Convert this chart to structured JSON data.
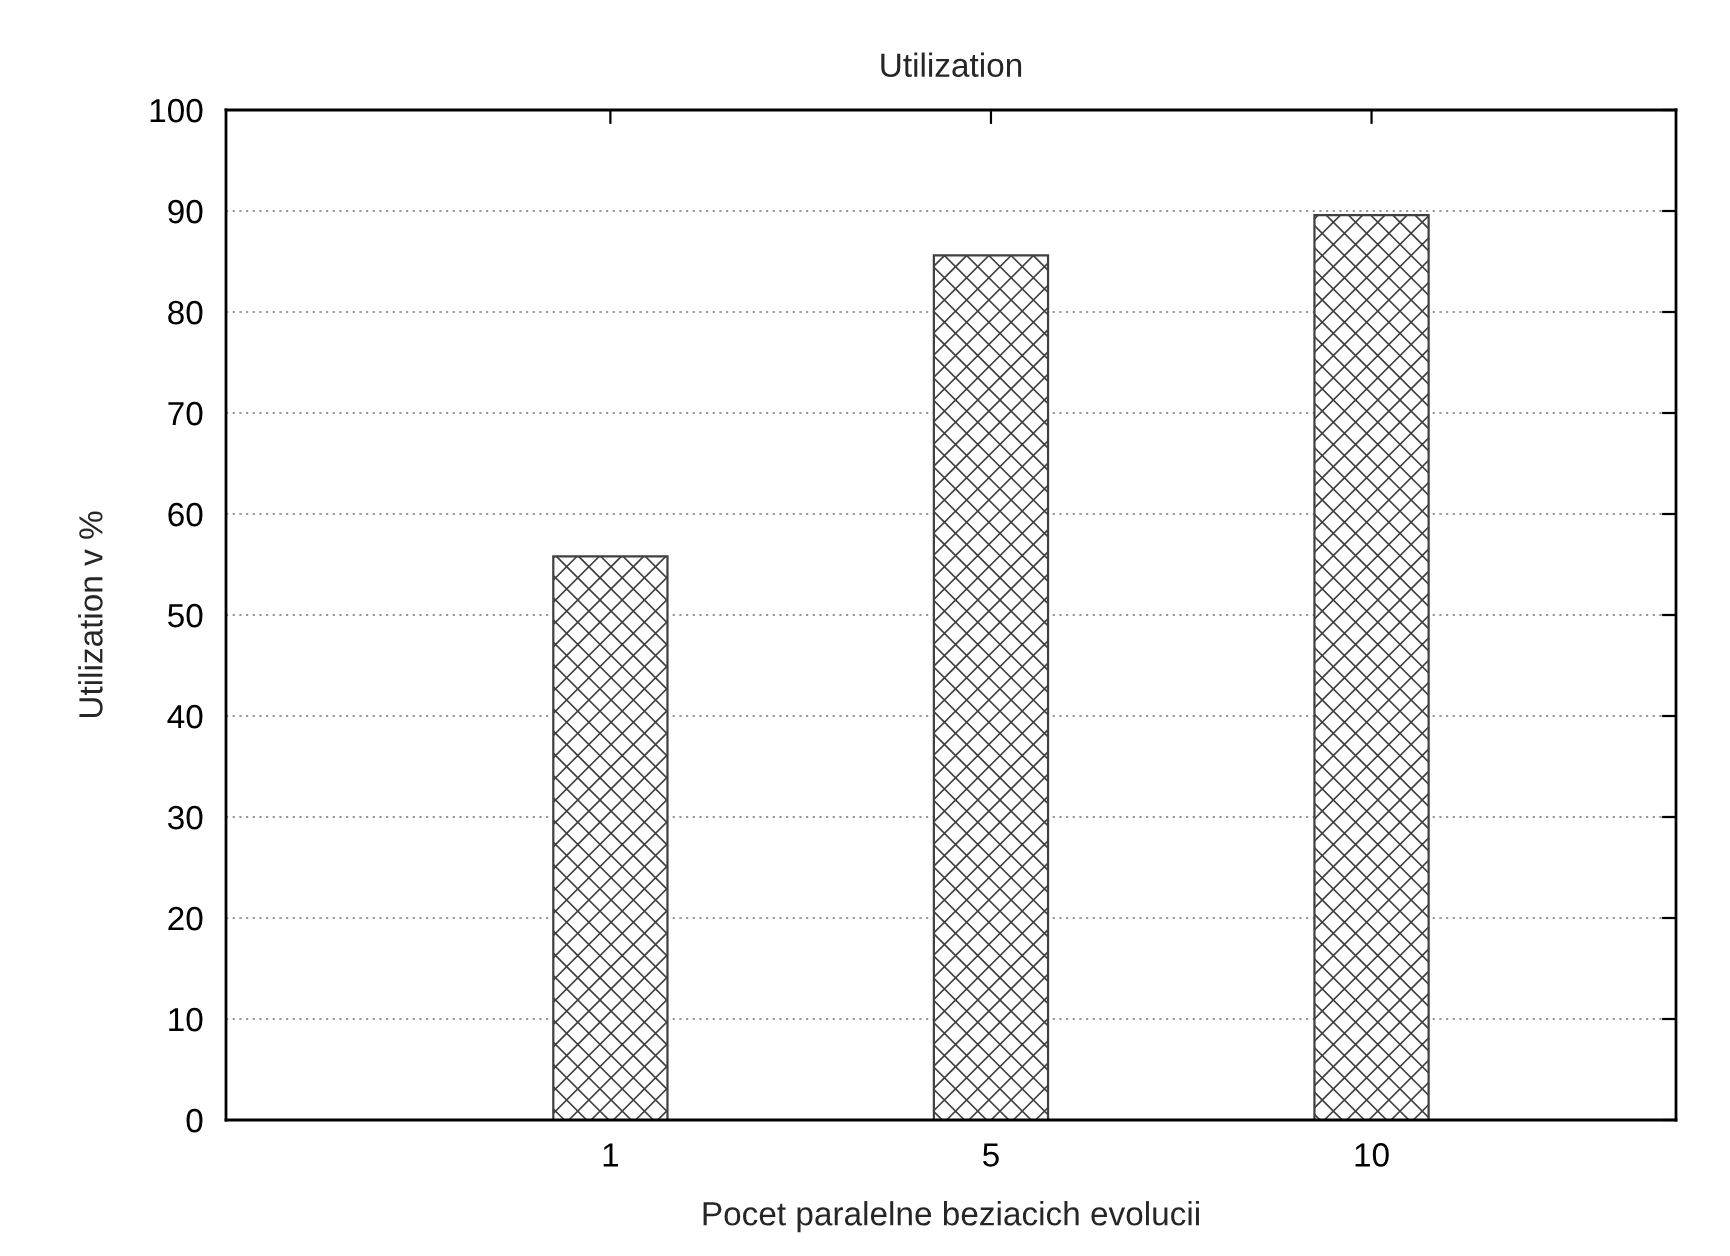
{
  "chart_data": {
    "type": "bar",
    "title": "Utilization",
    "xlabel": "Pocet paralelne beziacich evolucii",
    "ylabel": "Utilization v %",
    "categories": [
      "1",
      "5",
      "10"
    ],
    "values": [
      55.8,
      85.6,
      89.6
    ],
    "color": "#404040",
    "ylim": [
      0,
      100
    ],
    "yticks": [
      0,
      10,
      20,
      30,
      40,
      50,
      60,
      70,
      80,
      90,
      100
    ],
    "grid": "y",
    "legend": false
  }
}
